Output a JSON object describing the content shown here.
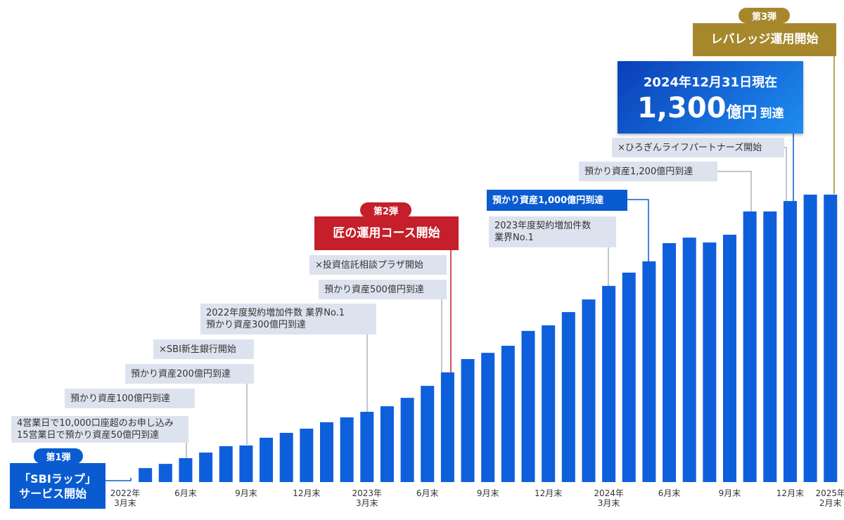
{
  "chart_data": {
    "type": "bar",
    "categories": [
      "2022年\n3月末",
      null,
      null,
      "6月末",
      null,
      null,
      "9月末",
      null,
      null,
      "12月末",
      null,
      null,
      "2023年\n3月末",
      null,
      null,
      "6月末",
      null,
      null,
      "9月末",
      null,
      null,
      "12月末",
      null,
      null,
      "2024年\n3月末",
      null,
      null,
      "6月末",
      null,
      null,
      "9月末",
      null,
      null,
      "12月末",
      null,
      "2025年\n2月末"
    ],
    "values": [
      0,
      63,
      82,
      108,
      133,
      162,
      165,
      200,
      222,
      241,
      270,
      292,
      317,
      342,
      380,
      434,
      495,
      555,
      583,
      615,
      682,
      707,
      767,
      824,
      885,
      945,
      996,
      1078,
      1103,
      1081,
      1116,
      1221,
      1221,
      1268,
      1297,
      1297
    ],
    "color": "#0e5fdc",
    "ylim": [
      0,
      1300
    ]
  },
  "annotations": {
    "first_badge": "第1弾",
    "first_launch": "「SBIラップ」\nサービス開始",
    "note_10000": "4営業日で10,000口座超のお申し込み\n15営業日で預かり資産50億円到達",
    "note_100": "預かり資産100億円到達",
    "note_200": "預かり資産200億円到達",
    "note_shinsei": "×SBI新生銀行開始",
    "note_300": "2022年度契約増加件数 業界No.1\n預かり資産300億円到達",
    "note_500": "預かり資産500億円到達",
    "note_plaza": "×投資信託相談プラザ開始",
    "second_badge": "第2弾",
    "second_launch": "匠の運用コース開始",
    "note_2023": "2023年度契約増加件数\n業界No.1",
    "note_1000": "預かり資産1,000億円到達",
    "note_1200": "預かり資産1,200億円到達",
    "note_hirogin": "×ひろぎんライフパートナーズ開始",
    "highlight_date": "2024年12月31日現在",
    "highlight_amount": "1,300",
    "highlight_unit": "億円",
    "highlight_suffix": "到達",
    "third_badge": "第3弾",
    "third_launch": "レバレッジ運用開始"
  }
}
